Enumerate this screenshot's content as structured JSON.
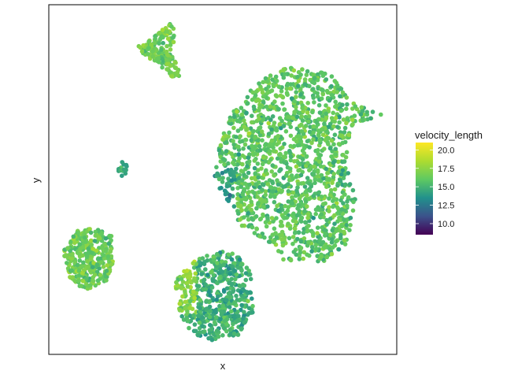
{
  "chart_data": {
    "type": "scatter",
    "title": "",
    "xlabel": "x",
    "ylabel": "y",
    "x_ticks": "none",
    "y_ticks": "none",
    "grid": false,
    "colormap": "viridis",
    "color_variable": "velocity_length",
    "color_range": [
      8.5,
      21
    ],
    "legend": {
      "title": "velocity_length",
      "position": "right",
      "ticks": [
        {
          "value": 20.0,
          "label": "20.0"
        },
        {
          "value": 17.5,
          "label": "17.5"
        },
        {
          "value": 15.0,
          "label": "15.0"
        },
        {
          "value": 12.5,
          "label": "12.5"
        },
        {
          "value": 10.0,
          "label": "10.0"
        }
      ]
    },
    "clusters": [
      {
        "id": "main",
        "center": [
          0.72,
          0.63
        ],
        "spread": [
          0.13,
          0.2
        ],
        "velocity_mean": 16.0
      },
      {
        "id": "bottom",
        "center": [
          0.44,
          0.18
        ],
        "spread": [
          0.08,
          0.1
        ],
        "velocity_mean": 14.8
      },
      {
        "id": "left",
        "center": [
          0.15,
          0.3
        ],
        "spread": [
          0.05,
          0.07
        ],
        "velocity_mean": 16.3
      },
      {
        "id": "top",
        "center": [
          0.33,
          0.89
        ],
        "spread": [
          0.05,
          0.06
        ],
        "velocity_mean": 16.6
      },
      {
        "id": "small",
        "center": [
          0.22,
          0.55
        ],
        "spread": [
          0.01,
          0.02
        ],
        "velocity_mean": 14.5
      }
    ]
  }
}
